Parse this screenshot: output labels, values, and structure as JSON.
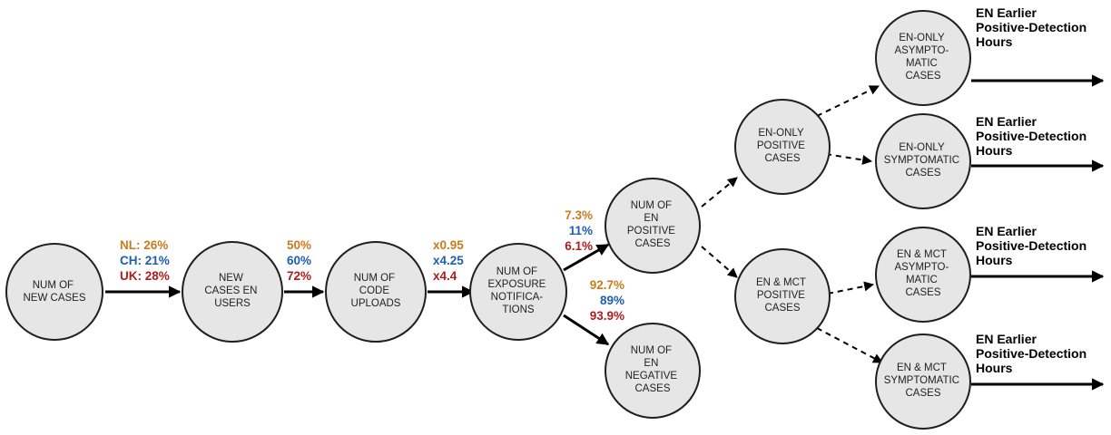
{
  "colors": {
    "nl": "#cc7a1a",
    "ch": "#1f5fad",
    "uk": "#b01c1c",
    "node_fill": "#e6e6e6"
  },
  "nodes": {
    "new_cases": [
      "NUM OF",
      "NEW CASES"
    ],
    "new_cases_en_users": [
      "NEW",
      "CASES EN",
      "USERS"
    ],
    "code_uploads": [
      "NUM OF",
      "CODE",
      "UPLOADS"
    ],
    "exposure_notifications": [
      "NUM OF",
      "EXPOSURE",
      "NOTIFICA-",
      "TIONS"
    ],
    "en_positive": [
      "NUM OF",
      "EN",
      "POSITIVE",
      "CASES"
    ],
    "en_negative": [
      "NUM OF",
      "EN",
      "NEGATIVE",
      "CASES"
    ],
    "en_only_positive": [
      "EN-ONLY",
      "POSITIVE",
      "CASES"
    ],
    "en_mct_positive": [
      "EN & MCT",
      "POSITIVE",
      "CASES"
    ],
    "en_only_asymptomatic": [
      "EN-ONLY",
      "ASYMPTO-",
      "MATIC",
      "CASES"
    ],
    "en_only_symptomatic": [
      "EN-ONLY",
      "SYMPTOMATIC",
      "CASES"
    ],
    "en_mct_asymptomatic": [
      "EN & MCT",
      "ASYMPTO-",
      "MATIC",
      "CASES"
    ],
    "en_mct_symptomatic": [
      "EN & MCT",
      "SYMPTOMATIC",
      "CASES"
    ]
  },
  "edge_labels": {
    "adoption": {
      "nl": "NL: 26%",
      "ch": "CH: 21%",
      "uk": "UK: 28%"
    },
    "upload_rate": {
      "nl": "50%",
      "ch": "60%",
      "uk": "72%"
    },
    "notification_factor": {
      "nl": "x0.95",
      "ch": "x4.25",
      "uk": "x4.4"
    },
    "positive_rate": {
      "nl": "7.3%",
      "ch": "11%",
      "uk": "6.1%"
    },
    "negative_rate": {
      "nl": "92.7%",
      "ch": "89%",
      "uk": "93.9%"
    }
  },
  "outputs": [
    [
      "EN Earlier",
      "Positive-Detection",
      "Hours"
    ],
    [
      "EN Earlier",
      "Positive-Detection",
      "Hours"
    ],
    [
      "EN Earlier",
      "Positive-Detection",
      "Hours"
    ],
    [
      "EN Earlier",
      "Positive-Detection",
      "Hours"
    ]
  ]
}
